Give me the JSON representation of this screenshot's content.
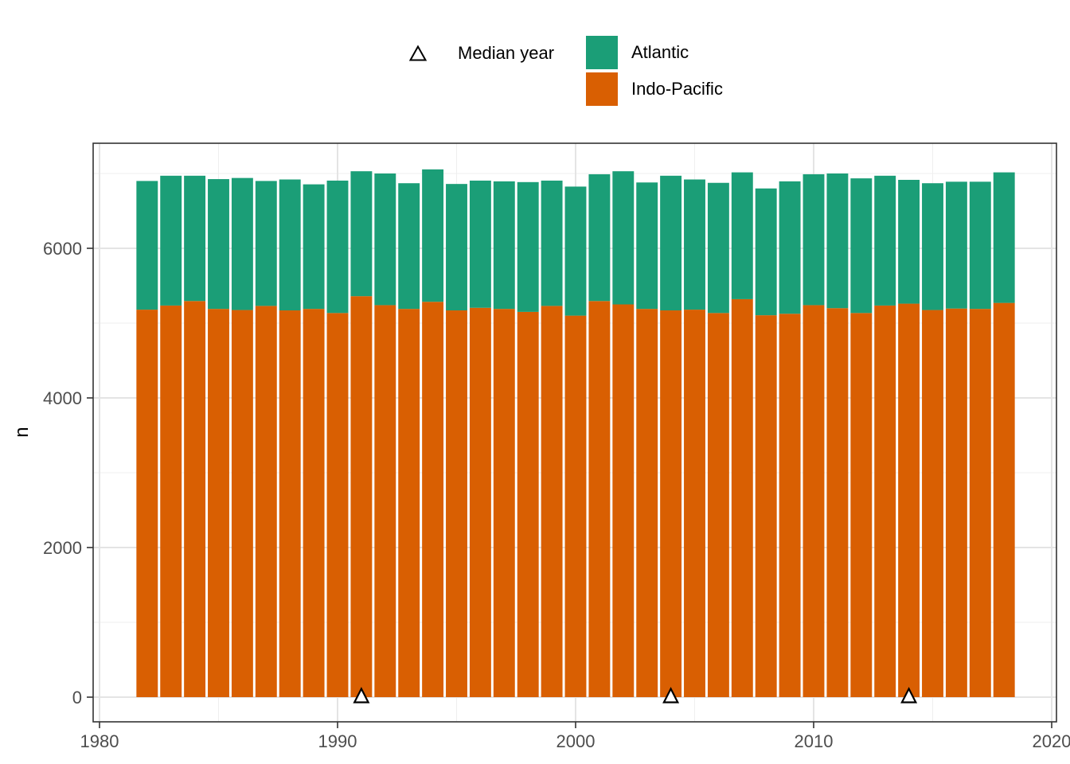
{
  "chart_data": {
    "type": "bar",
    "stacked": true,
    "title": "",
    "xlabel": "",
    "ylabel": "n",
    "legend_position": "top",
    "grid": true,
    "legend": {
      "median_label": "Median year",
      "items": [
        {
          "label": "Atlantic"
        },
        {
          "label": "Indo-Pacific"
        }
      ]
    },
    "categories": [
      1982,
      1983,
      1984,
      1985,
      1986,
      1987,
      1988,
      1989,
      1990,
      1991,
      1992,
      1993,
      1994,
      1995,
      1996,
      1997,
      1998,
      1999,
      2000,
      2001,
      2002,
      2003,
      2004,
      2005,
      2006,
      2007,
      2008,
      2009,
      2010,
      2011,
      2012,
      2013,
      2014,
      2015,
      2016,
      2017,
      2018
    ],
    "series": [
      {
        "name": "Indo-Pacific",
        "color": "#D95F02",
        "values": [
          5180,
          5235,
          5295,
          5190,
          5175,
          5230,
          5170,
          5190,
          5135,
          5360,
          5240,
          5190,
          5285,
          5170,
          5205,
          5190,
          5150,
          5230,
          5100,
          5295,
          5250,
          5190,
          5170,
          5180,
          5135,
          5320,
          5105,
          5125,
          5240,
          5200,
          5135,
          5235,
          5260,
          5175,
          5195,
          5190,
          5270
        ]
      },
      {
        "name": "Atlantic",
        "color": "#1B9E77",
        "values": [
          1720,
          1735,
          1675,
          1735,
          1765,
          1670,
          1750,
          1665,
          1770,
          1670,
          1760,
          1680,
          1770,
          1690,
          1700,
          1705,
          1735,
          1675,
          1725,
          1695,
          1780,
          1690,
          1800,
          1740,
          1740,
          1695,
          1695,
          1770,
          1750,
          1800,
          1800,
          1735,
          1655,
          1695,
          1695,
          1700,
          1745
        ]
      }
    ],
    "median_year_markers": [
      1991,
      2004,
      2014
    ],
    "x_axis": {
      "ticks": [
        1980,
        1990,
        2000,
        2010,
        2020
      ],
      "range": [
        1979.7,
        2020.3
      ]
    },
    "y_axis": {
      "ticks": [
        0,
        2000,
        4000,
        6000
      ],
      "range": [
        0,
        7400
      ]
    },
    "marker_style": {
      "shape": "open-triangle",
      "fill": "#FFFFFF",
      "stroke": "#000000"
    }
  }
}
